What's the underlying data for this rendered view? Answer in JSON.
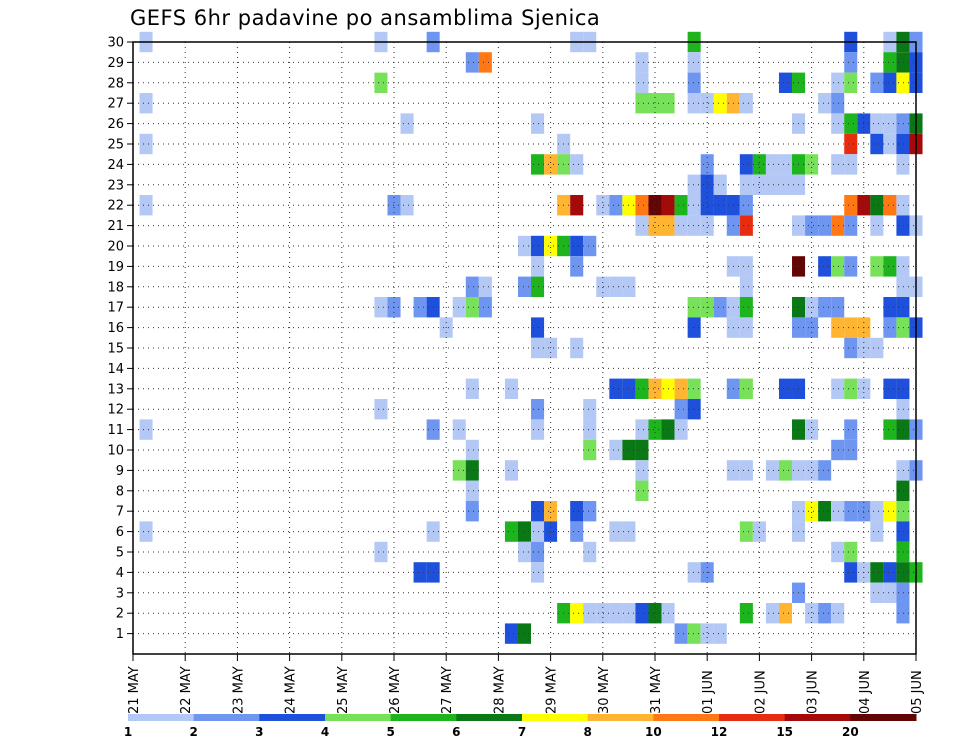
{
  "chart_data": {
    "type": "heatmap",
    "title": "GEFS 6hr padavine po ansamblima Sjenica",
    "xlabel": "",
    "ylabel": "",
    "x_tick_labels": [
      "21 MAY",
      "22 MAY",
      "23 MAY",
      "24 MAY",
      "25 MAY",
      "26 MAY",
      "27 MAY",
      "28 MAY",
      "29 MAY",
      "30 MAY",
      "31 MAY",
      "01 JUN",
      "02 JUN",
      "03 JUN",
      "04 JUN",
      "05 JUN"
    ],
    "x_range_days": [
      0,
      15
    ],
    "y_tick_labels": [
      1,
      2,
      3,
      4,
      5,
      6,
      7,
      8,
      9,
      10,
      11,
      12,
      13,
      14,
      15,
      16,
      17,
      18,
      19,
      20,
      21,
      22,
      23,
      24,
      25,
      26,
      27,
      28,
      29,
      30
    ],
    "y_range": [
      0,
      30
    ],
    "grid": true,
    "colorbar": {
      "levels": [
        "1",
        "2",
        "3",
        "4",
        "5",
        "6",
        "7",
        "8",
        "10",
        "12",
        "15",
        "20"
      ],
      "colors": [
        "#b4c8f5",
        "#6e96f0",
        "#1e50dc",
        "#78e15a",
        "#1eb41e",
        "#0a7814",
        "#ffff00",
        "#ffb432",
        "#ff7814",
        "#e62d0f",
        "#a50a0a",
        "#640505"
      ]
    },
    "cells": [
      [
        0.25,
        30,
        1
      ],
      [
        4.75,
        30,
        1
      ],
      [
        5.75,
        30,
        2
      ],
      [
        8.5,
        30,
        1
      ],
      [
        8.75,
        30,
        1
      ],
      [
        10.75,
        30,
        5
      ],
      [
        13.75,
        30,
        3
      ],
      [
        14.5,
        30,
        1
      ],
      [
        14.75,
        30,
        6
      ],
      [
        15,
        30,
        2
      ],
      [
        6.5,
        29,
        2
      ],
      [
        6.75,
        29,
        9
      ],
      [
        9.75,
        29,
        1
      ],
      [
        10.75,
        29,
        1
      ],
      [
        13.75,
        29,
        2
      ],
      [
        14.5,
        29,
        5
      ],
      [
        14.75,
        29,
        6
      ],
      [
        15,
        29,
        3
      ],
      [
        4.75,
        28,
        4
      ],
      [
        9.75,
        28,
        1
      ],
      [
        10.75,
        28,
        2
      ],
      [
        12.5,
        28,
        3
      ],
      [
        12.75,
        28,
        5
      ],
      [
        13.5,
        28,
        1
      ],
      [
        13.75,
        28,
        4
      ],
      [
        14.25,
        28,
        2
      ],
      [
        14.5,
        28,
        3
      ],
      [
        14.75,
        28,
        7
      ],
      [
        15,
        28,
        3
      ],
      [
        0.25,
        27,
        1
      ],
      [
        9.75,
        27,
        4
      ],
      [
        10,
        27,
        4
      ],
      [
        10.25,
        27,
        4
      ],
      [
        10.75,
        27,
        1
      ],
      [
        11,
        27,
        1
      ],
      [
        11.25,
        27,
        7
      ],
      [
        11.5,
        27,
        8
      ],
      [
        11.75,
        27,
        1
      ],
      [
        13.25,
        27,
        1
      ],
      [
        13.5,
        27,
        2
      ],
      [
        5.25,
        26,
        1
      ],
      [
        7.75,
        26,
        1
      ],
      [
        12.75,
        26,
        1
      ],
      [
        13.5,
        26,
        1
      ],
      [
        13.75,
        26,
        5
      ],
      [
        14,
        26,
        3
      ],
      [
        14.25,
        26,
        1
      ],
      [
        14.5,
        26,
        1
      ],
      [
        14.75,
        26,
        2
      ],
      [
        15,
        26,
        6
      ],
      [
        0.25,
        25,
        1
      ],
      [
        8.25,
        25,
        1
      ],
      [
        13.75,
        25,
        10
      ],
      [
        14.25,
        25,
        3
      ],
      [
        14.5,
        25,
        1
      ],
      [
        14.75,
        25,
        3
      ],
      [
        15,
        25,
        11
      ],
      [
        7.75,
        24,
        5
      ],
      [
        8,
        24,
        8
      ],
      [
        8.25,
        24,
        4
      ],
      [
        8.5,
        24,
        1
      ],
      [
        11,
        24,
        2
      ],
      [
        11.75,
        24,
        3
      ],
      [
        12,
        24,
        5
      ],
      [
        12.25,
        24,
        1
      ],
      [
        12.5,
        24,
        1
      ],
      [
        12.75,
        24,
        5
      ],
      [
        13,
        24,
        4
      ],
      [
        13.5,
        24,
        1
      ],
      [
        13.75,
        24,
        1
      ],
      [
        14.75,
        24,
        1
      ],
      [
        10.75,
        23,
        1
      ],
      [
        11,
        23,
        3
      ],
      [
        11.25,
        23,
        1
      ],
      [
        11.75,
        23,
        1
      ],
      [
        12,
        23,
        1
      ],
      [
        12.25,
        23,
        1
      ],
      [
        12.5,
        23,
        1
      ],
      [
        12.75,
        23,
        1
      ],
      [
        0.25,
        22,
        1
      ],
      [
        5,
        22,
        2
      ],
      [
        5.25,
        22,
        1
      ],
      [
        8.25,
        22,
        8
      ],
      [
        8.5,
        22,
        11
      ],
      [
        9,
        22,
        1
      ],
      [
        9.25,
        22,
        2
      ],
      [
        9.5,
        22,
        7
      ],
      [
        9.75,
        22,
        9
      ],
      [
        10,
        22,
        12
      ],
      [
        10.25,
        22,
        11
      ],
      [
        10.5,
        22,
        5
      ],
      [
        10.75,
        22,
        1
      ],
      [
        11,
        22,
        3
      ],
      [
        11.25,
        22,
        3
      ],
      [
        11.5,
        22,
        3
      ],
      [
        11.75,
        22,
        2
      ],
      [
        11.25,
        22,
        3
      ],
      [
        13.75,
        22,
        9
      ],
      [
        14,
        22,
        11
      ],
      [
        14.25,
        22,
        6
      ],
      [
        14.5,
        22,
        9
      ],
      [
        14.75,
        22,
        1
      ],
      [
        9.75,
        21,
        1
      ],
      [
        10,
        21,
        8
      ],
      [
        10.25,
        21,
        8
      ],
      [
        10.5,
        21,
        1
      ],
      [
        10.75,
        21,
        1
      ],
      [
        11,
        21,
        1
      ],
      [
        11.5,
        21,
        2
      ],
      [
        11.75,
        21,
        10
      ],
      [
        12.75,
        21,
        1
      ],
      [
        13,
        21,
        2
      ],
      [
        13.25,
        21,
        2
      ],
      [
        13.5,
        21,
        9
      ],
      [
        13.75,
        21,
        2
      ],
      [
        14.25,
        21,
        1
      ],
      [
        14.75,
        21,
        3
      ],
      [
        15,
        21,
        1
      ],
      [
        7.5,
        20,
        1
      ],
      [
        7.75,
        20,
        3
      ],
      [
        8,
        20,
        7
      ],
      [
        8.25,
        20,
        5
      ],
      [
        8.5,
        20,
        3
      ],
      [
        8.75,
        20,
        2
      ],
      [
        7.75,
        19,
        1
      ],
      [
        8.5,
        19,
        2
      ],
      [
        11.5,
        19,
        1
      ],
      [
        11.75,
        19,
        1
      ],
      [
        12.75,
        19,
        12
      ],
      [
        13.25,
        19,
        3
      ],
      [
        13.5,
        19,
        4
      ],
      [
        13.75,
        19,
        2
      ],
      [
        14.25,
        19,
        4
      ],
      [
        14.5,
        19,
        5
      ],
      [
        14.75,
        19,
        1
      ],
      [
        6.5,
        18,
        2
      ],
      [
        6.75,
        18,
        1
      ],
      [
        7.5,
        18,
        2
      ],
      [
        7.75,
        18,
        5
      ],
      [
        9,
        18,
        1
      ],
      [
        9.25,
        18,
        1
      ],
      [
        9.5,
        18,
        1
      ],
      [
        11.75,
        18,
        1
      ],
      [
        14.75,
        18,
        1
      ],
      [
        15,
        18,
        1
      ],
      [
        4.75,
        17,
        1
      ],
      [
        5,
        17,
        2
      ],
      [
        5.5,
        17,
        2
      ],
      [
        5.75,
        17,
        3
      ],
      [
        6.25,
        17,
        1
      ],
      [
        6.5,
        17,
        4
      ],
      [
        6.75,
        17,
        2
      ],
      [
        10.75,
        17,
        4
      ],
      [
        11,
        17,
        4
      ],
      [
        11.25,
        17,
        2
      ],
      [
        11.5,
        17,
        1
      ],
      [
        11.75,
        17,
        5
      ],
      [
        12.75,
        17,
        6
      ],
      [
        13,
        17,
        1
      ],
      [
        13.25,
        17,
        2
      ],
      [
        13.5,
        17,
        2
      ],
      [
        14.5,
        17,
        3
      ],
      [
        14.75,
        17,
        3
      ],
      [
        6,
        16,
        1
      ],
      [
        7.75,
        16,
        3
      ],
      [
        10.75,
        16,
        3
      ],
      [
        11.5,
        16,
        1
      ],
      [
        11.75,
        16,
        1
      ],
      [
        12.75,
        16,
        2
      ],
      [
        13,
        16,
        2
      ],
      [
        13.5,
        16,
        8
      ],
      [
        13.75,
        16,
        8
      ],
      [
        14,
        16,
        8
      ],
      [
        14.5,
        16,
        2
      ],
      [
        14.75,
        16,
        4
      ],
      [
        15,
        16,
        3
      ],
      [
        7.75,
        15,
        1
      ],
      [
        8,
        15,
        1
      ],
      [
        8.5,
        15,
        1
      ],
      [
        13.75,
        15,
        2
      ],
      [
        14,
        15,
        1
      ],
      [
        14.25,
        15,
        1
      ],
      [
        6.5,
        13,
        1
      ],
      [
        7.25,
        13,
        1
      ],
      [
        9.25,
        13,
        3
      ],
      [
        9.5,
        13,
        3
      ],
      [
        9.75,
        13,
        5
      ],
      [
        10,
        13,
        8
      ],
      [
        10.25,
        13,
        7
      ],
      [
        10.5,
        13,
        8
      ],
      [
        10.75,
        13,
        4
      ],
      [
        11.5,
        13,
        2
      ],
      [
        11.75,
        13,
        4
      ],
      [
        12.5,
        13,
        3
      ],
      [
        12.75,
        13,
        3
      ],
      [
        13.5,
        13,
        1
      ],
      [
        13.75,
        13,
        4
      ],
      [
        14,
        13,
        1
      ],
      [
        14.5,
        13,
        3
      ],
      [
        14.75,
        13,
        3
      ],
      [
        4.75,
        12,
        1
      ],
      [
        7.75,
        12,
        2
      ],
      [
        8.75,
        12,
        1
      ],
      [
        10.5,
        12,
        2
      ],
      [
        10.75,
        12,
        3
      ],
      [
        14.75,
        12,
        1
      ],
      [
        0.25,
        11,
        1
      ],
      [
        5.75,
        11,
        2
      ],
      [
        6.25,
        11,
        1
      ],
      [
        7.75,
        11,
        1
      ],
      [
        8.75,
        11,
        1
      ],
      [
        9.75,
        11,
        1
      ],
      [
        10,
        11,
        5
      ],
      [
        10.25,
        11,
        6
      ],
      [
        10.5,
        11,
        1
      ],
      [
        12.75,
        11,
        6
      ],
      [
        13,
        11,
        1
      ],
      [
        13.75,
        11,
        2
      ],
      [
        14.5,
        11,
        5
      ],
      [
        14.75,
        11,
        6
      ],
      [
        15,
        11,
        2
      ],
      [
        6.5,
        10,
        1
      ],
      [
        8.75,
        10,
        4
      ],
      [
        9.25,
        10,
        1
      ],
      [
        9.5,
        10,
        6
      ],
      [
        9.75,
        10,
        6
      ],
      [
        13.5,
        10,
        2
      ],
      [
        13.75,
        10,
        2
      ],
      [
        6.25,
        9,
        4
      ],
      [
        6.5,
        9,
        6
      ],
      [
        7.25,
        9,
        1
      ],
      [
        9.75,
        9,
        1
      ],
      [
        11.5,
        9,
        1
      ],
      [
        11.75,
        9,
        1
      ],
      [
        12.25,
        9,
        1
      ],
      [
        12.5,
        9,
        4
      ],
      [
        12.75,
        9,
        1
      ],
      [
        13,
        9,
        1
      ],
      [
        13.25,
        9,
        2
      ],
      [
        14.75,
        9,
        1
      ],
      [
        15,
        9,
        2
      ],
      [
        6.5,
        8,
        1
      ],
      [
        9.75,
        8,
        4
      ],
      [
        14.75,
        8,
        6
      ],
      [
        6.5,
        7,
        2
      ],
      [
        7.75,
        7,
        3
      ],
      [
        8,
        7,
        8
      ],
      [
        8.5,
        7,
        3
      ],
      [
        8.75,
        7,
        2
      ],
      [
        12.75,
        7,
        1
      ],
      [
        13,
        7,
        7
      ],
      [
        13.25,
        7,
        6
      ],
      [
        13.5,
        7,
        1
      ],
      [
        13.75,
        7,
        2
      ],
      [
        14,
        7,
        2
      ],
      [
        14.25,
        7,
        1
      ],
      [
        14.5,
        7,
        7
      ],
      [
        14.75,
        7,
        4
      ],
      [
        0.25,
        6,
        1
      ],
      [
        5.75,
        6,
        1
      ],
      [
        7.25,
        6,
        5
      ],
      [
        7.5,
        6,
        6
      ],
      [
        7.75,
        6,
        1
      ],
      [
        8,
        6,
        3
      ],
      [
        8.5,
        6,
        2
      ],
      [
        9.25,
        6,
        1
      ],
      [
        9.5,
        6,
        1
      ],
      [
        11.75,
        6,
        4
      ],
      [
        12,
        6,
        1
      ],
      [
        12.75,
        6,
        1
      ],
      [
        14.25,
        6,
        1
      ],
      [
        14.75,
        6,
        3
      ],
      [
        4.75,
        5,
        1
      ],
      [
        7.5,
        5,
        1
      ],
      [
        7.75,
        5,
        2
      ],
      [
        8.75,
        5,
        1
      ],
      [
        13.5,
        5,
        1
      ],
      [
        13.75,
        5,
        4
      ],
      [
        14.75,
        5,
        5
      ],
      [
        5.5,
        4,
        3
      ],
      [
        5.75,
        4,
        3
      ],
      [
        7.75,
        4,
        1
      ],
      [
        10.75,
        4,
        1
      ],
      [
        11,
        4,
        2
      ],
      [
        13.75,
        4,
        3
      ],
      [
        14,
        4,
        1
      ],
      [
        14.25,
        4,
        6
      ],
      [
        14.5,
        4,
        3
      ],
      [
        14.75,
        4,
        6
      ],
      [
        15,
        4,
        5
      ],
      [
        12.75,
        3,
        2
      ],
      [
        14.25,
        3,
        1
      ],
      [
        14.5,
        3,
        1
      ],
      [
        14.75,
        3,
        2
      ],
      [
        8.25,
        2,
        5
      ],
      [
        8.5,
        2,
        7
      ],
      [
        8.75,
        2,
        1
      ],
      [
        9,
        2,
        1
      ],
      [
        9.25,
        2,
        1
      ],
      [
        9.5,
        2,
        1
      ],
      [
        9.75,
        2,
        3
      ],
      [
        10,
        2,
        6
      ],
      [
        10.25,
        2,
        1
      ],
      [
        11.75,
        2,
        5
      ],
      [
        12.25,
        2,
        1
      ],
      [
        12.5,
        2,
        8
      ],
      [
        13,
        2,
        1
      ],
      [
        13.25,
        2,
        2
      ],
      [
        13.5,
        2,
        1
      ],
      [
        14.75,
        2,
        2
      ],
      [
        7.25,
        1,
        3
      ],
      [
        7.5,
        1,
        6
      ],
      [
        10.5,
        1,
        2
      ],
      [
        10.75,
        1,
        4
      ],
      [
        11,
        1,
        1
      ],
      [
        11.25,
        1,
        1
      ]
    ]
  }
}
